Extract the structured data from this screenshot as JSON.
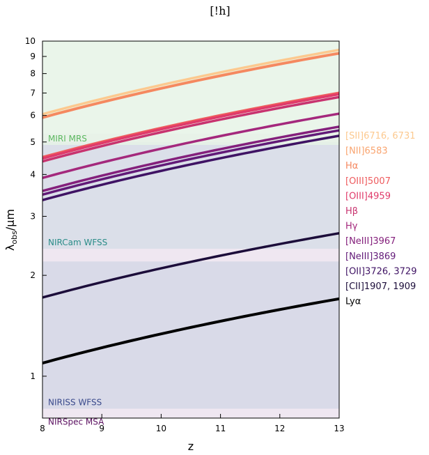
{
  "page_title": "[!h]",
  "chart_data": {
    "type": "line",
    "xlabel": "z",
    "ylabel": "λobs/μm",
    "ylabel_main": "λ",
    "ylabel_sub": "obs",
    "ylabel_unit": "/μm",
    "xlim": [
      8,
      13
    ],
    "ylim": [
      0.75,
      10
    ],
    "y_scale": "log",
    "x_ticks": [
      8,
      9,
      10,
      11,
      12,
      13
    ],
    "y_ticks": [
      1,
      2,
      3,
      4,
      5,
      6,
      7,
      8,
      9,
      10
    ],
    "grid": false,
    "legend_placement": "right, outside plot",
    "regions": [
      {
        "label": "NIRSpec MSA",
        "range": [
          0.7,
          5.3
        ],
        "color": "#ece3ef",
        "label_color": "#5b1060"
      },
      {
        "label": "NIRISS WFSS",
        "range": [
          0.8,
          2.2
        ],
        "color": "#d5d7e6",
        "label_color": "#3a4a8c"
      },
      {
        "label": "NIRCam WFSS",
        "range": [
          2.4,
          5.0
        ],
        "color": "#d7dde8",
        "label_color": "#2a8c88"
      },
      {
        "label": "MIRI MRS",
        "range": [
          4.9,
          28.0
        ],
        "color": "#e6f3e6",
        "label_color": "#5cb860"
      }
    ],
    "series": [
      {
        "name": "[SII]6716, 6731",
        "rest_um": 0.6724,
        "color": "#fcc98f",
        "width": 3.5
      },
      {
        "name": "[NII]6583",
        "rest_um": 0.6583,
        "color": "#f9a46f",
        "width": 3.5
      },
      {
        "name": "Hα",
        "rest_um": 0.6563,
        "color": "#f58860",
        "width": 3.5
      },
      {
        "name": "[OIII]5007",
        "rest_um": 0.5007,
        "color": "#ee5b5e",
        "width": 3.5
      },
      {
        "name": "[OIII]4959",
        "rest_um": 0.4959,
        "color": "#e03a6a",
        "width": 3.5
      },
      {
        "name": "Hβ",
        "rest_um": 0.4861,
        "color": "#c8336f",
        "width": 3.5
      },
      {
        "name": "Hγ",
        "rest_um": 0.434,
        "color": "#a4287c",
        "width": 3.5
      },
      {
        "name": "[NeIII]3967",
        "rest_um": 0.3967,
        "color": "#84207c",
        "width": 3.5
      },
      {
        "name": "[NeIII]3869",
        "rest_um": 0.3869,
        "color": "#621a78",
        "width": 3.5
      },
      {
        "name": "[OII]3726, 3729",
        "rest_um": 0.3727,
        "color": "#3f1364",
        "width": 3.5
      },
      {
        "name": "[CII]1907, 1909",
        "rest_um": 0.1908,
        "color": "#1c0d3a",
        "width": 3.5
      },
      {
        "name": "Lyα",
        "rest_um": 0.1216,
        "color": "#000000",
        "width": 4
      }
    ]
  }
}
